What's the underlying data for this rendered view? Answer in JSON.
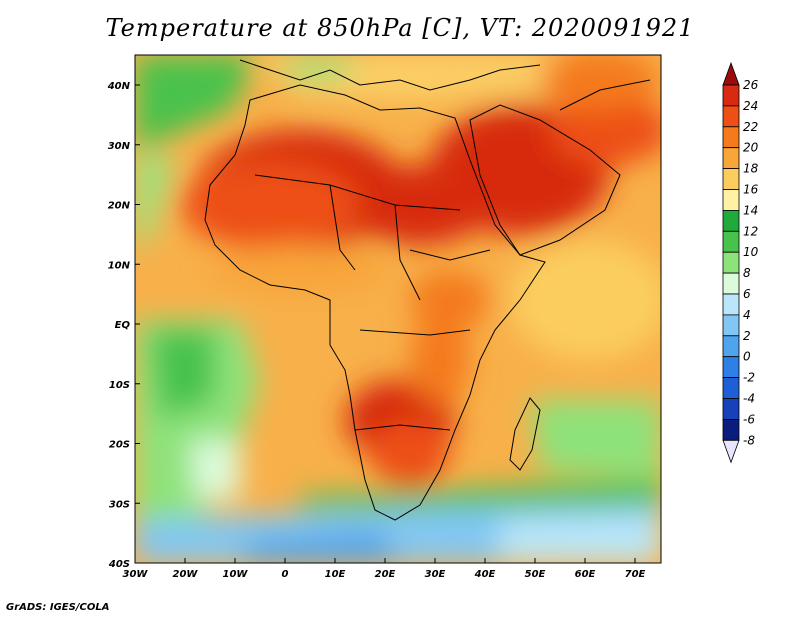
{
  "title": "Temperature at 850hPa [C], VT: 2020091921",
  "credit": "GrADS: IGES/COLA",
  "map": {
    "lon_labels": [
      "30W",
      "20W",
      "10W",
      "0",
      "10E",
      "20E",
      "30E",
      "40E",
      "50E",
      "60E",
      "70E"
    ],
    "lat_labels": [
      "40N",
      "30N",
      "20N",
      "10N",
      "EQ",
      "10S",
      "20S",
      "30S",
      "40S"
    ]
  },
  "colorbar": {
    "labels": [
      "26",
      "24",
      "22",
      "20",
      "18",
      "16",
      "14",
      "12",
      "10",
      "8",
      "6",
      "4",
      "2",
      "0",
      "-2",
      "-4",
      "-6",
      "-8"
    ],
    "colors": [
      "#9b0b0b",
      "#d72a10",
      "#ed4f17",
      "#f47a1d",
      "#f8a53a",
      "#fbcd5e",
      "#fff2a5",
      "#20aa3c",
      "#47c24b",
      "#8ee27a",
      "#dcfbdc",
      "#b9e6f8",
      "#82c7f3",
      "#4fa4ee",
      "#2f80e6",
      "#1f5fd6",
      "#1840b8",
      "#0b1d7c",
      "#e6e6ff"
    ]
  }
}
